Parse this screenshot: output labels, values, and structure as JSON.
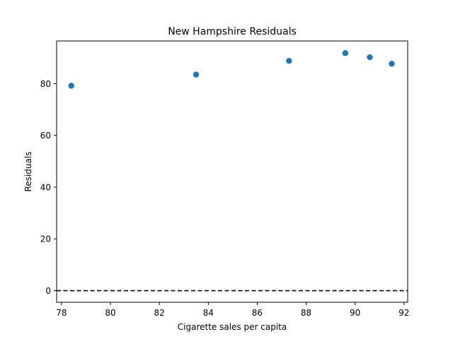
{
  "chart_data": {
    "type": "scatter",
    "title": "New Hampshire Residuals",
    "xlabel": "Cigarette sales per capita",
    "ylabel": "Residuals",
    "xlim": [
      77.8,
      92.15
    ],
    "ylim": [
      -4.5,
      96.5
    ],
    "xticks": [
      78,
      80,
      82,
      84,
      86,
      88,
      90,
      92
    ],
    "yticks": [
      0,
      20,
      40,
      60,
      80
    ],
    "points": [
      {
        "x": 78.4,
        "y": 79.2
      },
      {
        "x": 83.5,
        "y": 83.5
      },
      {
        "x": 87.3,
        "y": 88.8
      },
      {
        "x": 89.6,
        "y": 91.8
      },
      {
        "x": 90.6,
        "y": 90.2
      },
      {
        "x": 91.5,
        "y": 87.7
      }
    ],
    "reference_line": {
      "y": 0,
      "style": "dashed",
      "color": "#000000"
    },
    "grid": false,
    "marker_color": "#1f77b4"
  }
}
